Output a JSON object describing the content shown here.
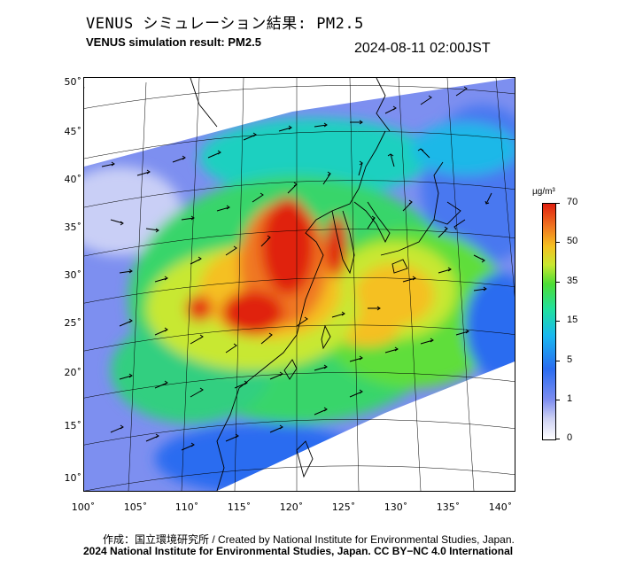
{
  "header": {
    "title_jp": "VENUS シミュレーション結果: PM2.5",
    "title_en": "VENUS simulation result: PM2.5",
    "timestamp": "2024-08-11 02:00JST"
  },
  "map": {
    "lat_labels": [
      "50˚",
      "45˚",
      "40˚",
      "35˚",
      "30˚",
      "25˚",
      "20˚",
      "15˚",
      "10˚"
    ],
    "lon_labels": [
      "100˚",
      "105˚",
      "110˚",
      "115˚",
      "120˚",
      "125˚",
      "130˚",
      "135˚",
      "140˚"
    ],
    "lat_range": [
      10,
      50
    ],
    "lon_range": [
      100,
      140
    ],
    "grid": true,
    "coastline_color": "#000000",
    "wind_vectors": true
  },
  "colorbar": {
    "unit_html": "µg/m³",
    "ticks": [
      "70",
      "50",
      "35",
      "15",
      "5",
      "1",
      "0"
    ],
    "colors": [
      "#ffffff",
      "#ccd0f3",
      "#7c8cf0",
      "#2a6cf0",
      "#19b8f0",
      "#20e0a0",
      "#4ddd35",
      "#c8e830",
      "#f5c020",
      "#f07820",
      "#e02010"
    ]
  },
  "footer": {
    "credit_line1": "作成：国立環境研究所 / Created by National Institute for Environmental Studies, Japan.",
    "credit_line2": "2024 National Institute for Environmental Studies, Japan. CC BY−NC 4.0 International"
  }
}
